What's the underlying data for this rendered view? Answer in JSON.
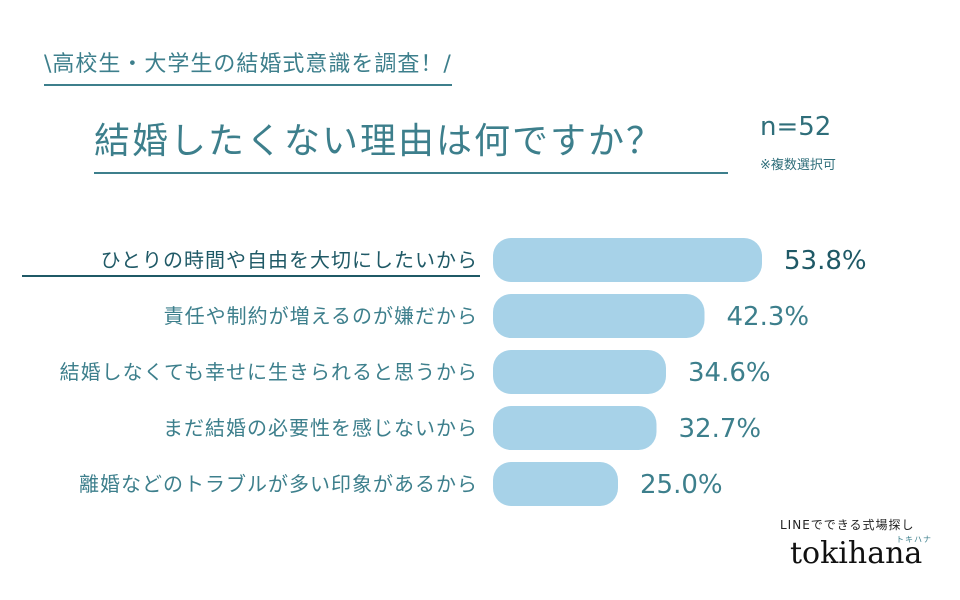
{
  "header": {
    "subtitle": "\\高校生・大学生の結婚式意識を調査！/",
    "title": "結婚したくない理由は何ですか？",
    "sample_size": "n=52",
    "note": "※複数選択可"
  },
  "chart_data": {
    "type": "bar",
    "orientation": "horizontal",
    "categories": [
      "ひとりの時間や自由を大切にしたいから",
      "責任や制約が増えるのが嫌だから",
      "結婚しなくても幸せに生きられると思うから",
      "まだ結婚の必要性を感じないから",
      "離婚などのトラブルが多い印象があるから"
    ],
    "values": [
      53.8,
      42.3,
      34.6,
      32.7,
      25.0
    ],
    "value_labels": [
      "53.8%",
      "42.3%",
      "34.6%",
      "32.7%",
      "25.0%"
    ],
    "highlight_index": 0,
    "bar_color": "#a7d2e8",
    "label_color": "#3d7f8c",
    "highlight_color": "#1f5966",
    "grid": false
  },
  "brand": {
    "tagline": "LINEでできる式場探し",
    "kana": "トキハナ",
    "logo": "tokihana"
  }
}
